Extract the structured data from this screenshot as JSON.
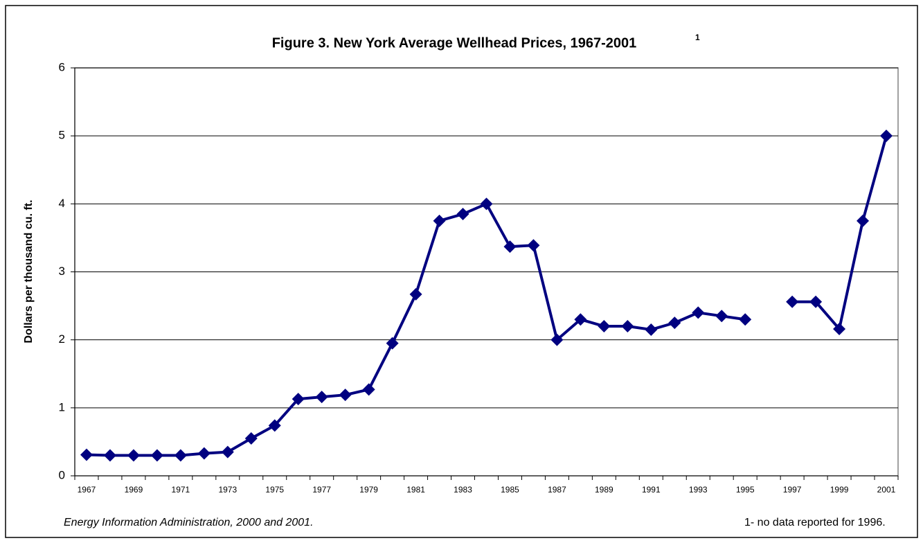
{
  "chart_data": {
    "type": "line",
    "title": "Figure 3. New York Average Wellhead Prices, 1967-2001",
    "title_note": "1",
    "y_label": "Dollars per thousand cu. ft.",
    "source": "Energy Information Administration, 2000 and 2001.",
    "footnote": "1-  no data reported for 1996.",
    "categories": [
      "1967",
      null,
      "1969",
      null,
      "1971",
      null,
      "1973",
      null,
      "1975",
      null,
      "1977",
      null,
      "1979",
      null,
      "1981",
      null,
      "1983",
      null,
      "1985",
      null,
      "1987",
      null,
      "1989",
      null,
      "1991",
      null,
      "1993",
      null,
      "1995",
      null,
      "1997",
      null,
      "1999",
      null,
      "2001"
    ],
    "values": [
      0.31,
      0.3,
      0.3,
      0.3,
      0.3,
      0.33,
      0.35,
      0.55,
      0.74,
      1.13,
      1.16,
      1.19,
      1.27,
      1.95,
      2.67,
      3.75,
      3.85,
      4.0,
      3.37,
      3.39,
      2.0,
      2.3,
      2.2,
      2.2,
      2.15,
      2.25,
      2.4,
      2.35,
      2.3,
      null,
      2.56,
      2.56,
      2.16,
      3.75,
      5.0
    ],
    "color": "#000080",
    "ylim": [
      0,
      6
    ],
    "yticks": [
      0,
      1,
      2,
      3,
      4,
      5,
      6
    ],
    "grid": true
  }
}
